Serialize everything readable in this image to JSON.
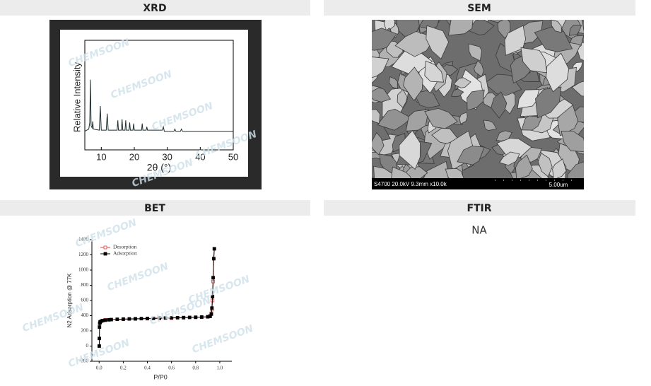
{
  "watermark": "CHEMSOON",
  "sections": [
    {
      "title": "XRD",
      "chart_data": {
        "type": "line",
        "xlabel": "2θ (°)",
        "ylabel": "Relative Intensity",
        "color": "#1e2e2e",
        "x": [
          5,
          6.2,
          6.5,
          6.7,
          6.9,
          7.2,
          7.4,
          7.6,
          9.4,
          9.7,
          10,
          11.5,
          11.8,
          12.1,
          14.8,
          15,
          15.2,
          16.1,
          16.3,
          16.5,
          17.2,
          17.4,
          17.6,
          18.4,
          18.6,
          18.8,
          19.6,
          19.8,
          20,
          22.2,
          22.4,
          22.6,
          23.6,
          23.8,
          24,
          28.5,
          28.8,
          29.1,
          32,
          32.3,
          32.6,
          34,
          34.3,
          34.6,
          50
        ],
        "values": [
          17,
          19,
          25,
          64,
          22,
          20,
          26,
          19,
          18,
          40,
          18,
          18,
          33,
          18,
          18,
          27,
          18,
          18,
          28,
          18,
          18,
          27,
          18,
          18,
          25,
          18,
          18,
          24,
          18,
          18,
          24,
          18,
          18,
          21,
          18,
          18,
          21,
          17,
          17,
          19,
          17,
          17,
          19,
          17,
          17
        ],
        "xlim": [
          5,
          50
        ],
        "ylim": [
          0,
          100
        ],
        "xticks": [
          10,
          20,
          30,
          40,
          50
        ]
      }
    },
    {
      "title": "SEM",
      "image_caption": "S4700 20.0kV 9.3mm x10.0k",
      "scale_bar": "5.00um"
    },
    {
      "title": "BET",
      "chart_data": {
        "type": "scatter",
        "xlabel": "P/P0",
        "ylabel": "N2 Adsorption @ 77K",
        "xlim": [
          -0.06,
          1.1
        ],
        "ylim": [
          -200,
          1400
        ],
        "xticks": [
          {
            "value": 0,
            "label": "0.0"
          },
          {
            "value": 0.2,
            "label": "0.2"
          },
          {
            "value": 0.4,
            "label": "0.4"
          },
          {
            "value": 0.6,
            "label": "0.6"
          },
          {
            "value": 0.8,
            "label": "0.8"
          },
          {
            "value": 1,
            "label": "1.0"
          }
        ],
        "yticks": [
          -200,
          0,
          200,
          400,
          600,
          800,
          1000,
          1200,
          1400
        ],
        "series": [
          {
            "name": "Desorption",
            "color": "#e04040",
            "x": [
              0.955,
              0.95,
              0.945,
              0.94,
              0.935,
              0.93,
              0.92,
              0.9,
              0.85,
              0.8,
              0.7,
              0.6,
              0.5,
              0.4,
              0.3,
              0.2,
              0.1,
              0.05
            ],
            "values": [
              1280,
              1150,
              850,
              600,
              480,
              430,
              400,
              385,
              380,
              378,
              372,
              368,
              364,
              360,
              356,
              352,
              348,
              345
            ]
          },
          {
            "name": "Adsorption",
            "color": "#000000",
            "x": [
              0.001,
              0.002,
              0.003,
              0.005,
              0.008,
              0.01,
              0.02,
              0.03,
              0.05,
              0.08,
              0.1,
              0.15,
              0.2,
              0.25,
              0.3,
              0.35,
              0.4,
              0.45,
              0.5,
              0.55,
              0.6,
              0.65,
              0.7,
              0.75,
              0.8,
              0.85,
              0.9,
              0.92,
              0.93,
              0.935,
              0.94,
              0.945,
              0.95,
              0.955
            ],
            "values": [
              0,
              100,
              250,
              300,
              315,
              320,
              330,
              335,
              340,
              345,
              348,
              352,
              355,
              357,
              359,
              361,
              363,
              365,
              367,
              369,
              371,
              373,
              375,
              377,
              379,
              382,
              385,
              390,
              420,
              500,
              650,
              900,
              1150,
              1280
            ]
          }
        ]
      }
    },
    {
      "title": "FTIR",
      "text": "NA"
    }
  ]
}
